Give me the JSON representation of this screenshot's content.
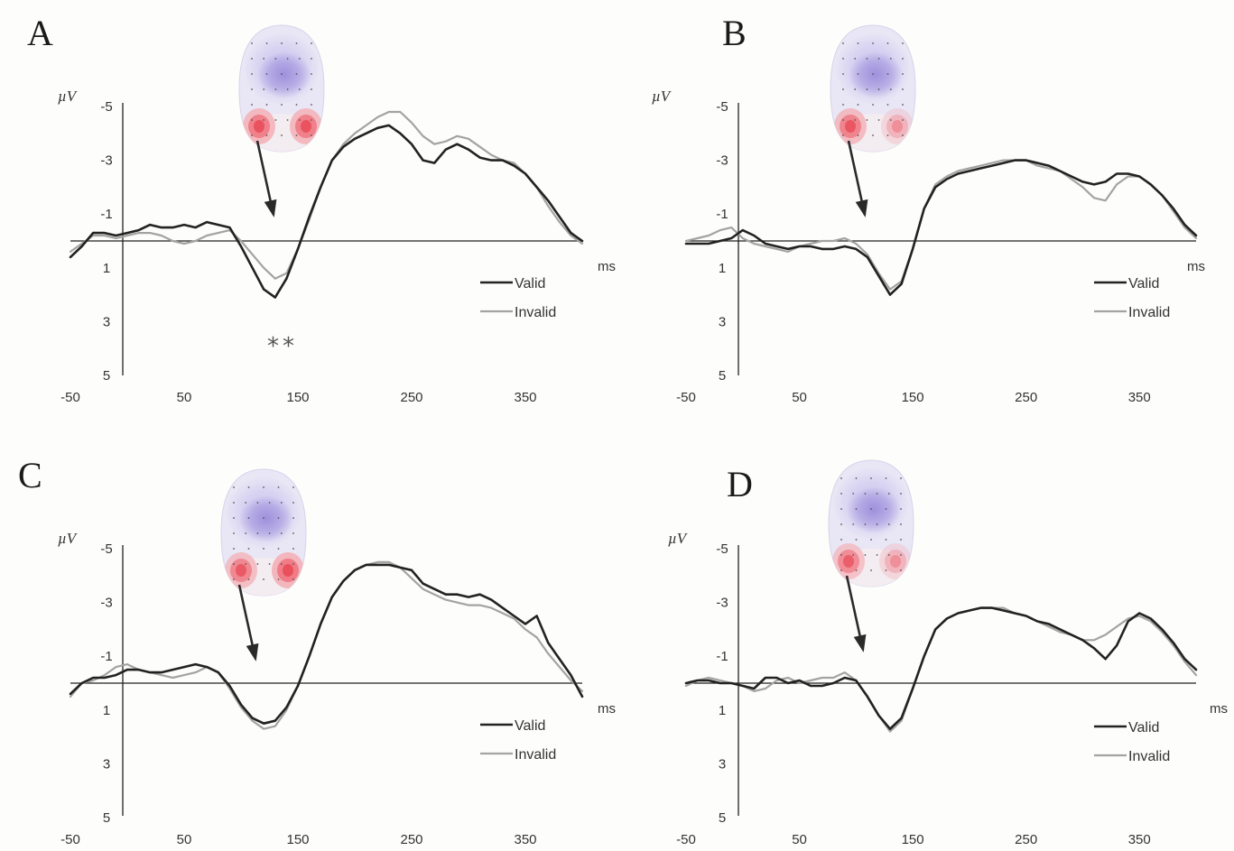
{
  "chart_data": [
    {
      "type": "line",
      "panel": "A",
      "xlabel": "ms",
      "ylabel": "µV",
      "x_ticks": [
        "-50",
        "50",
        "150",
        "250",
        "350"
      ],
      "y_ticks": [
        "-5",
        "-3",
        "-1",
        "1",
        "3",
        "5"
      ],
      "xlim": [
        -50,
        400
      ],
      "ylim": [
        5,
        -5
      ],
      "annotation": "**",
      "colors": {
        "Valid": "#222222",
        "Invalid": "#a3a3a3"
      },
      "series": [
        {
          "name": "Valid",
          "x": [
            -50,
            -40,
            -30,
            -20,
            -10,
            0,
            10,
            20,
            30,
            40,
            50,
            60,
            70,
            80,
            90,
            100,
            110,
            120,
            130,
            140,
            150,
            160,
            170,
            180,
            190,
            200,
            210,
            220,
            230,
            240,
            250,
            260,
            270,
            280,
            290,
            300,
            310,
            320,
            330,
            340,
            350,
            360,
            370,
            380,
            390,
            400
          ],
          "values": [
            0.6,
            0.2,
            -0.3,
            -0.3,
            -0.2,
            -0.3,
            -0.4,
            -0.6,
            -0.5,
            -0.5,
            -0.6,
            -0.5,
            -0.7,
            -0.6,
            -0.5,
            0.2,
            1.0,
            1.8,
            2.1,
            1.4,
            0.3,
            -0.9,
            -2.0,
            -3.0,
            -3.5,
            -3.8,
            -4.0,
            -4.2,
            -4.3,
            -4.0,
            -3.6,
            -3.0,
            -2.9,
            -3.4,
            -3.6,
            -3.4,
            -3.1,
            -3.0,
            -3.0,
            -2.8,
            -2.5,
            -2.0,
            -1.5,
            -0.9,
            -0.3,
            0.0
          ]
        },
        {
          "name": "Invalid",
          "x": [
            -50,
            -40,
            -30,
            -20,
            -10,
            0,
            10,
            20,
            30,
            40,
            50,
            60,
            70,
            80,
            90,
            100,
            110,
            120,
            130,
            140,
            150,
            160,
            170,
            180,
            190,
            200,
            210,
            220,
            230,
            240,
            250,
            260,
            270,
            280,
            290,
            300,
            310,
            320,
            330,
            340,
            350,
            360,
            370,
            380,
            390,
            400
          ],
          "values": [
            0.4,
            0.1,
            -0.2,
            -0.2,
            -0.1,
            -0.2,
            -0.3,
            -0.3,
            -0.2,
            0.0,
            0.1,
            0.0,
            -0.2,
            -0.3,
            -0.4,
            0.0,
            0.5,
            1.0,
            1.4,
            1.2,
            0.3,
            -0.8,
            -2.0,
            -3.0,
            -3.6,
            -4.0,
            -4.3,
            -4.6,
            -4.8,
            -4.8,
            -4.4,
            -3.9,
            -3.6,
            -3.7,
            -3.9,
            -3.8,
            -3.5,
            -3.2,
            -3.0,
            -2.9,
            -2.5,
            -2.0,
            -1.3,
            -0.7,
            -0.2,
            0.1
          ]
        }
      ]
    },
    {
      "type": "line",
      "panel": "B",
      "xlabel": "ms",
      "ylabel": "µV",
      "x_ticks": [
        "-50",
        "50",
        "150",
        "250",
        "350"
      ],
      "y_ticks": [
        "-5",
        "-3",
        "-1",
        "1",
        "3",
        "5"
      ],
      "xlim": [
        -50,
        400
      ],
      "ylim": [
        5,
        -5
      ],
      "annotation": "",
      "colors": {
        "Valid": "#222222",
        "Invalid": "#a3a3a3"
      },
      "series": [
        {
          "name": "Valid",
          "x": [
            -50,
            -40,
            -30,
            -20,
            -10,
            0,
            10,
            20,
            30,
            40,
            50,
            60,
            70,
            80,
            90,
            100,
            110,
            120,
            130,
            140,
            150,
            160,
            170,
            180,
            190,
            200,
            210,
            220,
            230,
            240,
            250,
            260,
            270,
            280,
            290,
            300,
            310,
            320,
            330,
            340,
            350,
            360,
            370,
            380,
            390,
            400
          ],
          "values": [
            0.1,
            0.1,
            0.1,
            0.0,
            -0.1,
            -0.4,
            -0.2,
            0.1,
            0.2,
            0.3,
            0.2,
            0.2,
            0.3,
            0.3,
            0.2,
            0.3,
            0.6,
            1.3,
            2.0,
            1.6,
            0.3,
            -1.2,
            -2.0,
            -2.3,
            -2.5,
            -2.6,
            -2.7,
            -2.8,
            -2.9,
            -3.0,
            -3.0,
            -2.9,
            -2.8,
            -2.6,
            -2.4,
            -2.2,
            -2.1,
            -2.2,
            -2.5,
            -2.5,
            -2.4,
            -2.1,
            -1.7,
            -1.2,
            -0.6,
            -0.2
          ]
        },
        {
          "name": "Invalid",
          "x": [
            -50,
            -40,
            -30,
            -20,
            -10,
            0,
            10,
            20,
            30,
            40,
            50,
            60,
            70,
            80,
            90,
            100,
            110,
            120,
            130,
            140,
            150,
            160,
            170,
            180,
            190,
            200,
            210,
            220,
            230,
            240,
            250,
            260,
            270,
            280,
            290,
            300,
            310,
            320,
            330,
            340,
            350,
            360,
            370,
            380,
            390,
            400
          ],
          "values": [
            0.0,
            -0.1,
            -0.2,
            -0.4,
            -0.5,
            -0.1,
            0.1,
            0.2,
            0.3,
            0.4,
            0.2,
            0.1,
            0.0,
            0.0,
            -0.1,
            0.1,
            0.5,
            1.2,
            1.8,
            1.5,
            0.3,
            -1.2,
            -2.1,
            -2.4,
            -2.6,
            -2.7,
            -2.8,
            -2.9,
            -3.0,
            -3.0,
            -3.0,
            -2.8,
            -2.7,
            -2.6,
            -2.3,
            -2.0,
            -1.6,
            -1.5,
            -2.1,
            -2.4,
            -2.4,
            -2.1,
            -1.7,
            -1.1,
            -0.5,
            -0.1
          ]
        }
      ]
    },
    {
      "type": "line",
      "panel": "C",
      "xlabel": "ms",
      "ylabel": "µV",
      "x_ticks": [
        "-50",
        "50",
        "150",
        "250",
        "350"
      ],
      "y_ticks": [
        "-5",
        "-3",
        "-1",
        "1",
        "3",
        "5"
      ],
      "xlim": [
        -50,
        400
      ],
      "ylim": [
        5,
        -5
      ],
      "annotation": "",
      "colors": {
        "Valid": "#222222",
        "Invalid": "#a3a3a3"
      },
      "series": [
        {
          "name": "Valid",
          "x": [
            -50,
            -40,
            -30,
            -20,
            -10,
            0,
            10,
            20,
            30,
            40,
            50,
            60,
            70,
            80,
            90,
            100,
            110,
            120,
            130,
            140,
            150,
            160,
            170,
            180,
            190,
            200,
            210,
            220,
            230,
            240,
            250,
            260,
            270,
            280,
            290,
            300,
            310,
            320,
            330,
            340,
            350,
            360,
            370,
            380,
            390,
            400
          ],
          "values": [
            0.4,
            0.0,
            -0.2,
            -0.2,
            -0.3,
            -0.5,
            -0.5,
            -0.4,
            -0.4,
            -0.5,
            -0.6,
            -0.7,
            -0.6,
            -0.4,
            0.1,
            0.8,
            1.3,
            1.5,
            1.4,
            0.9,
            0.1,
            -1.0,
            -2.2,
            -3.2,
            -3.8,
            -4.2,
            -4.4,
            -4.4,
            -4.4,
            -4.3,
            -4.2,
            -3.7,
            -3.5,
            -3.3,
            -3.3,
            -3.2,
            -3.3,
            -3.1,
            -2.8,
            -2.5,
            -2.2,
            -2.5,
            -1.5,
            -0.9,
            -0.3,
            0.5
          ]
        },
        {
          "name": "Invalid",
          "x": [
            -50,
            -40,
            -30,
            -20,
            -10,
            0,
            10,
            20,
            30,
            40,
            50,
            60,
            70,
            80,
            90,
            100,
            110,
            120,
            130,
            140,
            150,
            160,
            170,
            180,
            190,
            200,
            210,
            220,
            230,
            240,
            250,
            260,
            270,
            280,
            290,
            300,
            310,
            320,
            330,
            340,
            350,
            360,
            370,
            380,
            390,
            400
          ],
          "values": [
            0.5,
            0.0,
            -0.1,
            -0.3,
            -0.6,
            -0.7,
            -0.5,
            -0.4,
            -0.3,
            -0.2,
            -0.3,
            -0.4,
            -0.6,
            -0.4,
            0.2,
            0.9,
            1.4,
            1.7,
            1.6,
            1.0,
            0.1,
            -1.0,
            -2.2,
            -3.2,
            -3.8,
            -4.2,
            -4.4,
            -4.5,
            -4.5,
            -4.3,
            -3.9,
            -3.5,
            -3.3,
            -3.1,
            -3.0,
            -2.9,
            -2.9,
            -2.8,
            -2.6,
            -2.4,
            -2.0,
            -1.7,
            -1.1,
            -0.6,
            -0.1,
            0.3
          ]
        }
      ]
    },
    {
      "type": "line",
      "panel": "D",
      "xlabel": "ms",
      "ylabel": "µV",
      "x_ticks": [
        "-50",
        "50",
        "150",
        "250",
        "350"
      ],
      "y_ticks": [
        "-5",
        "-3",
        "-1",
        "1",
        "3",
        "5"
      ],
      "xlim": [
        -50,
        400
      ],
      "ylim": [
        5,
        -5
      ],
      "annotation": "",
      "colors": {
        "Valid": "#222222",
        "Invalid": "#a3a3a3"
      },
      "series": [
        {
          "name": "Valid",
          "x": [
            -50,
            -40,
            -30,
            -20,
            -10,
            0,
            10,
            20,
            30,
            40,
            50,
            60,
            70,
            80,
            90,
            100,
            110,
            120,
            130,
            140,
            150,
            160,
            170,
            180,
            190,
            200,
            210,
            220,
            230,
            240,
            250,
            260,
            270,
            280,
            290,
            300,
            310,
            320,
            330,
            340,
            350,
            360,
            370,
            380,
            390,
            400
          ],
          "values": [
            0.0,
            -0.1,
            -0.1,
            0.0,
            0.0,
            0.1,
            0.2,
            -0.2,
            -0.2,
            0.0,
            -0.1,
            0.1,
            0.1,
            0.0,
            -0.2,
            -0.1,
            0.5,
            1.2,
            1.7,
            1.3,
            0.2,
            -1.0,
            -2.0,
            -2.4,
            -2.6,
            -2.7,
            -2.8,
            -2.8,
            -2.7,
            -2.6,
            -2.5,
            -2.3,
            -2.2,
            -2.0,
            -1.8,
            -1.6,
            -1.3,
            -0.9,
            -1.4,
            -2.3,
            -2.6,
            -2.4,
            -2.0,
            -1.5,
            -0.9,
            -0.5
          ]
        },
        {
          "name": "Invalid",
          "x": [
            -50,
            -40,
            -30,
            -20,
            -10,
            0,
            10,
            20,
            30,
            40,
            50,
            60,
            70,
            80,
            90,
            100,
            110,
            120,
            130,
            140,
            150,
            160,
            170,
            180,
            190,
            200,
            210,
            220,
            230,
            240,
            250,
            260,
            270,
            280,
            290,
            300,
            310,
            320,
            330,
            340,
            350,
            360,
            370,
            380,
            390,
            400
          ],
          "values": [
            0.1,
            -0.1,
            -0.2,
            -0.1,
            0.0,
            0.1,
            0.3,
            0.2,
            -0.1,
            -0.2,
            0.0,
            -0.1,
            -0.2,
            -0.2,
            -0.4,
            -0.1,
            0.5,
            1.2,
            1.8,
            1.4,
            0.2,
            -1.0,
            -2.0,
            -2.4,
            -2.6,
            -2.7,
            -2.8,
            -2.8,
            -2.8,
            -2.6,
            -2.5,
            -2.3,
            -2.1,
            -1.9,
            -1.8,
            -1.6,
            -1.6,
            -1.8,
            -2.1,
            -2.4,
            -2.5,
            -2.3,
            -1.9,
            -1.4,
            -0.8,
            -0.3
          ]
        }
      ]
    }
  ]
}
